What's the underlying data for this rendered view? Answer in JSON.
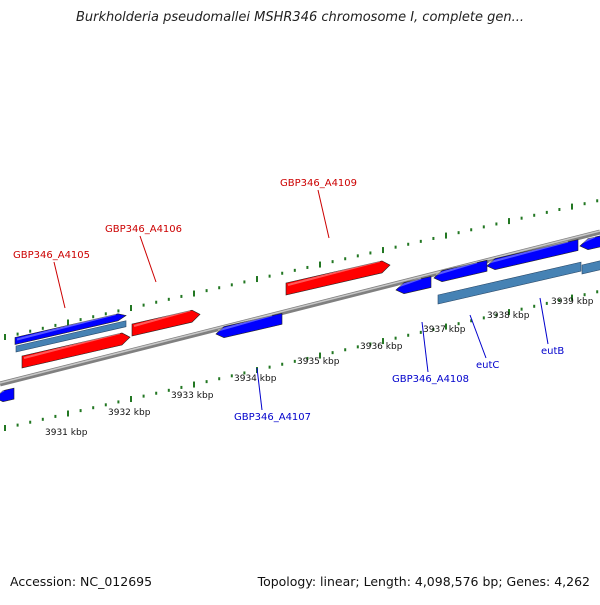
{
  "title": "Burkholderia pseudomallei MSHR346 chromosome I, complete gen...",
  "footer": {
    "accession": "Accession: NC_012695",
    "summary": "Topology: linear; Length: 4,098,576 bp; Genes: 4,262"
  },
  "colors": {
    "forward_gene": "#ff0000",
    "reverse_gene": "#0000ff",
    "cds_bar": "#4682b4",
    "backbone": "#808080",
    "tick": "#227722",
    "forward_label": "#cc0000",
    "reverse_label": "#0000cc",
    "kbp_label": "#111111"
  },
  "scale": {
    "ticks": [
      {
        "label": "3931 kbp"
      },
      {
        "label": "3932 kbp"
      },
      {
        "label": "3933 kbp"
      },
      {
        "label": "3934 kbp"
      },
      {
        "label": "3935 kbp"
      },
      {
        "label": "3936 kbp"
      },
      {
        "label": "3937 kbp"
      },
      {
        "label": "3938 kbp"
      },
      {
        "label": "3939 kbp"
      }
    ]
  },
  "gene_labels": {
    "forward": [
      {
        "name": "GBP346_A4105"
      },
      {
        "name": "GBP346_A4106"
      },
      {
        "name": "GBP346_A4109"
      }
    ],
    "reverse": [
      {
        "name": "GBP346_A4107"
      },
      {
        "name": "GBP346_A4108"
      },
      {
        "name": "eutC"
      },
      {
        "name": "eutB"
      }
    ]
  }
}
